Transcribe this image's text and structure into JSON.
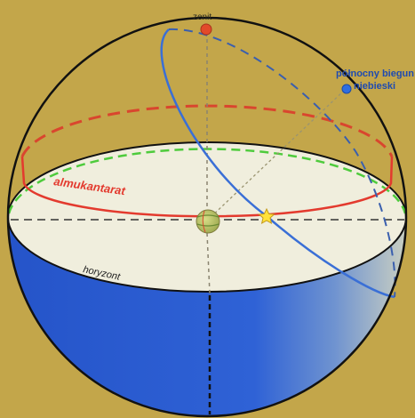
{
  "diagram": {
    "labels": {
      "zenith": "zenit",
      "pole_line1": "północny biegun",
      "pole_line2": "niebieski",
      "almucantar": "almukantarat",
      "horizon": "horyzont"
    },
    "colors": {
      "background": "#c3a64a",
      "sphere_outline": "#111111",
      "horizon_plane": "#f0eedd",
      "horizon_edge": "#4ecb3c",
      "lower_hemisphere": "#2b5fd0",
      "almucantar_circle": "#e33a2e",
      "meridian_circle": "#3a6fd6",
      "zenith_marker": "#e24a2a",
      "pole_marker": "#2f6ee0",
      "star_marker": "#ffe23a",
      "observer_earth": "#b8c46a"
    },
    "icons": {
      "star": "star-icon",
      "earth": "earth-globe-icon"
    }
  }
}
